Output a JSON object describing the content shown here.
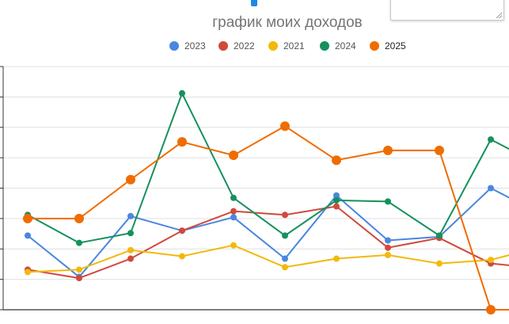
{
  "chart_data": {
    "type": "line",
    "title": "график моих доходов",
    "xlabel": "",
    "ylabel": "",
    "x": [
      1,
      2,
      3,
      4,
      5,
      6,
      7,
      8,
      9,
      10,
      11
    ],
    "ylim": [
      0,
      100
    ],
    "yticks": [
      0,
      12.5,
      25,
      37.5,
      50,
      62.5,
      75,
      87.5,
      100
    ],
    "grid": true,
    "legend_position": "top",
    "highlighted_series": "2025",
    "series": [
      {
        "name": "2023",
        "color": "#4a86e0",
        "values": [
          30.5,
          13.5,
          38.5,
          32.5,
          38,
          21,
          47,
          28.5,
          30,
          50,
          39
        ]
      },
      {
        "name": "2022",
        "color": "#cf4a3c",
        "values": [
          16.5,
          13,
          21,
          32.5,
          40.5,
          39,
          42.5,
          25.5,
          29.5,
          19,
          17
        ]
      },
      {
        "name": "2021",
        "color": "#f2b90d",
        "values": [
          15.5,
          16.5,
          24.5,
          22,
          26.5,
          17.5,
          21,
          22.5,
          19,
          20.5,
          26
        ]
      },
      {
        "name": "2024",
        "color": "#15915c",
        "values": [
          39,
          27.5,
          31.5,
          89,
          46,
          30.5,
          45,
          44.5,
          30.5,
          70,
          59
        ]
      },
      {
        "name": "2025",
        "color": "#ef6c00",
        "values": [
          37.5,
          37.5,
          53.5,
          69,
          63.5,
          75.5,
          61.5,
          65.5,
          65.5,
          0,
          0
        ]
      }
    ]
  }
}
